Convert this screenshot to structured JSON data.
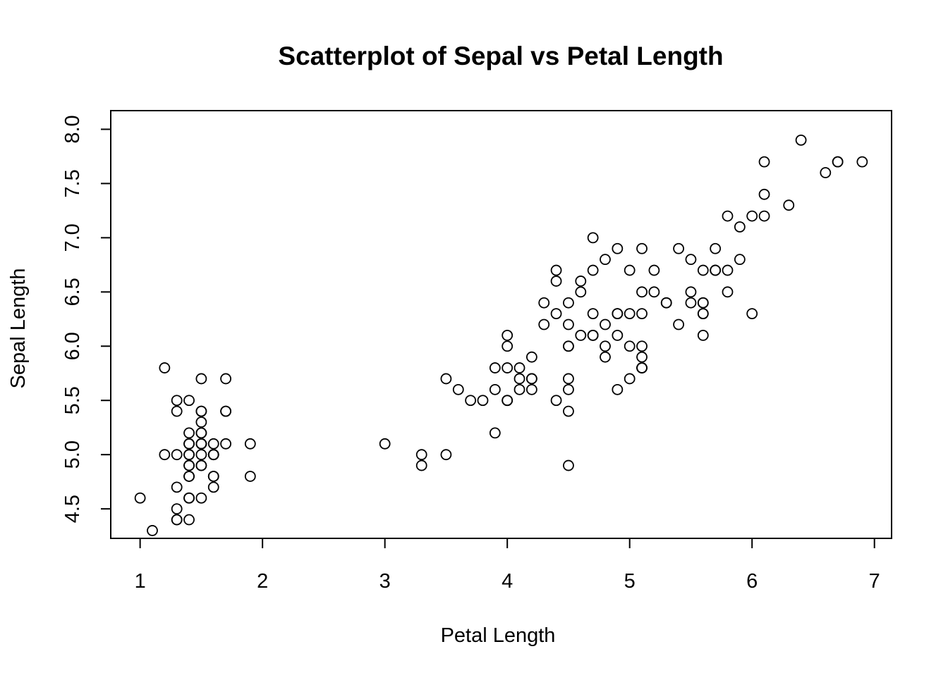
{
  "chart_data": {
    "type": "scatter",
    "title": "Scatterplot of Sepal vs Petal Length",
    "xlabel": "Petal Length",
    "ylabel": "Sepal Length",
    "x_ticks": [
      "1",
      "2",
      "3",
      "4",
      "5",
      "6",
      "7"
    ],
    "y_ticks": [
      "4.5",
      "5.0",
      "5.5",
      "6.0",
      "6.5",
      "7.0",
      "7.5",
      "8.0"
    ],
    "xlim": [
      0.76,
      7.14
    ],
    "ylim": [
      4.228,
      8.172
    ],
    "grid": false,
    "legend": "none",
    "marker": "open-circle",
    "colors": {
      "marker": "#000000",
      "axis": "#000000",
      "background": "#ffffff"
    },
    "points": [
      [
        1.4,
        5.1
      ],
      [
        1.4,
        4.9
      ],
      [
        1.3,
        4.7
      ],
      [
        1.5,
        4.6
      ],
      [
        1.4,
        5.0
      ],
      [
        1.7,
        5.4
      ],
      [
        1.4,
        4.6
      ],
      [
        1.5,
        5.0
      ],
      [
        1.4,
        4.4
      ],
      [
        1.5,
        4.9
      ],
      [
        1.5,
        5.4
      ],
      [
        1.6,
        4.8
      ],
      [
        1.4,
        4.8
      ],
      [
        1.1,
        4.3
      ],
      [
        1.2,
        5.8
      ],
      [
        1.5,
        5.7
      ],
      [
        1.3,
        5.4
      ],
      [
        1.4,
        5.1
      ],
      [
        1.7,
        5.7
      ],
      [
        1.5,
        5.1
      ],
      [
        1.7,
        5.4
      ],
      [
        1.5,
        5.1
      ],
      [
        1.0,
        4.6
      ],
      [
        1.7,
        5.1
      ],
      [
        1.9,
        4.8
      ],
      [
        1.6,
        5.0
      ],
      [
        1.6,
        5.0
      ],
      [
        1.5,
        5.2
      ],
      [
        1.4,
        5.2
      ],
      [
        1.6,
        4.7
      ],
      [
        1.6,
        4.8
      ],
      [
        1.5,
        5.4
      ],
      [
        1.5,
        5.2
      ],
      [
        1.4,
        5.5
      ],
      [
        1.5,
        4.9
      ],
      [
        1.2,
        5.0
      ],
      [
        1.3,
        5.5
      ],
      [
        1.4,
        4.9
      ],
      [
        1.3,
        4.4
      ],
      [
        1.5,
        5.1
      ],
      [
        1.3,
        5.0
      ],
      [
        1.3,
        4.5
      ],
      [
        1.3,
        4.4
      ],
      [
        1.6,
        5.0
      ],
      [
        1.9,
        5.1
      ],
      [
        1.4,
        4.8
      ],
      [
        1.6,
        5.1
      ],
      [
        1.4,
        4.6
      ],
      [
        1.5,
        5.3
      ],
      [
        1.4,
        5.0
      ],
      [
        4.7,
        7.0
      ],
      [
        4.5,
        6.4
      ],
      [
        4.9,
        6.9
      ],
      [
        4.0,
        5.5
      ],
      [
        4.6,
        6.5
      ],
      [
        4.5,
        5.7
      ],
      [
        4.7,
        6.3
      ],
      [
        3.3,
        4.9
      ],
      [
        4.6,
        6.6
      ],
      [
        3.9,
        5.2
      ],
      [
        3.5,
        5.0
      ],
      [
        4.2,
        5.9
      ],
      [
        4.0,
        6.0
      ],
      [
        4.7,
        6.1
      ],
      [
        3.6,
        5.6
      ],
      [
        4.4,
        6.7
      ],
      [
        4.5,
        5.6
      ],
      [
        4.1,
        5.8
      ],
      [
        4.5,
        6.2
      ],
      [
        3.9,
        5.6
      ],
      [
        4.8,
        5.9
      ],
      [
        4.0,
        6.1
      ],
      [
        4.9,
        6.3
      ],
      [
        4.7,
        6.1
      ],
      [
        4.3,
        6.4
      ],
      [
        4.4,
        6.6
      ],
      [
        4.8,
        6.8
      ],
      [
        5.0,
        6.7
      ],
      [
        4.5,
        6.0
      ],
      [
        3.5,
        5.7
      ],
      [
        3.8,
        5.5
      ],
      [
        3.7,
        5.5
      ],
      [
        3.9,
        5.8
      ],
      [
        5.1,
        6.0
      ],
      [
        4.5,
        5.4
      ],
      [
        4.5,
        6.0
      ],
      [
        4.7,
        6.7
      ],
      [
        4.4,
        6.3
      ],
      [
        4.1,
        5.6
      ],
      [
        4.0,
        5.5
      ],
      [
        4.4,
        5.5
      ],
      [
        4.6,
        6.1
      ],
      [
        4.0,
        5.8
      ],
      [
        3.3,
        5.0
      ],
      [
        4.2,
        5.6
      ],
      [
        4.2,
        5.7
      ],
      [
        4.2,
        5.7
      ],
      [
        4.3,
        6.2
      ],
      [
        3.0,
        5.1
      ],
      [
        4.1,
        5.7
      ],
      [
        6.0,
        6.3
      ],
      [
        5.1,
        5.8
      ],
      [
        5.9,
        7.1
      ],
      [
        5.6,
        6.3
      ],
      [
        5.8,
        6.5
      ],
      [
        6.6,
        7.6
      ],
      [
        4.5,
        4.9
      ],
      [
        6.3,
        7.3
      ],
      [
        5.8,
        6.7
      ],
      [
        6.1,
        7.2
      ],
      [
        5.1,
        6.5
      ],
      [
        5.3,
        6.4
      ],
      [
        5.5,
        6.8
      ],
      [
        5.0,
        5.7
      ],
      [
        5.1,
        5.8
      ],
      [
        5.3,
        6.4
      ],
      [
        5.5,
        6.5
      ],
      [
        6.7,
        7.7
      ],
      [
        6.9,
        7.7
      ],
      [
        5.0,
        6.0
      ],
      [
        5.7,
        6.9
      ],
      [
        4.9,
        5.6
      ],
      [
        6.7,
        7.7
      ],
      [
        4.9,
        6.3
      ],
      [
        5.7,
        6.7
      ],
      [
        6.0,
        7.2
      ],
      [
        4.8,
        6.2
      ],
      [
        4.9,
        6.1
      ],
      [
        5.6,
        6.4
      ],
      [
        5.8,
        7.2
      ],
      [
        6.1,
        7.4
      ],
      [
        6.4,
        7.9
      ],
      [
        5.6,
        6.4
      ],
      [
        5.1,
        6.3
      ],
      [
        5.6,
        6.1
      ],
      [
        6.1,
        7.7
      ],
      [
        5.6,
        6.3
      ],
      [
        5.5,
        6.4
      ],
      [
        4.8,
        6.0
      ],
      [
        5.4,
        6.9
      ],
      [
        5.6,
        6.7
      ],
      [
        5.1,
        6.9
      ],
      [
        5.1,
        5.8
      ],
      [
        5.9,
        6.8
      ],
      [
        5.7,
        6.7
      ],
      [
        5.2,
        6.7
      ],
      [
        5.0,
        6.3
      ],
      [
        5.2,
        6.5
      ],
      [
        5.4,
        6.2
      ],
      [
        5.1,
        5.9
      ]
    ]
  }
}
